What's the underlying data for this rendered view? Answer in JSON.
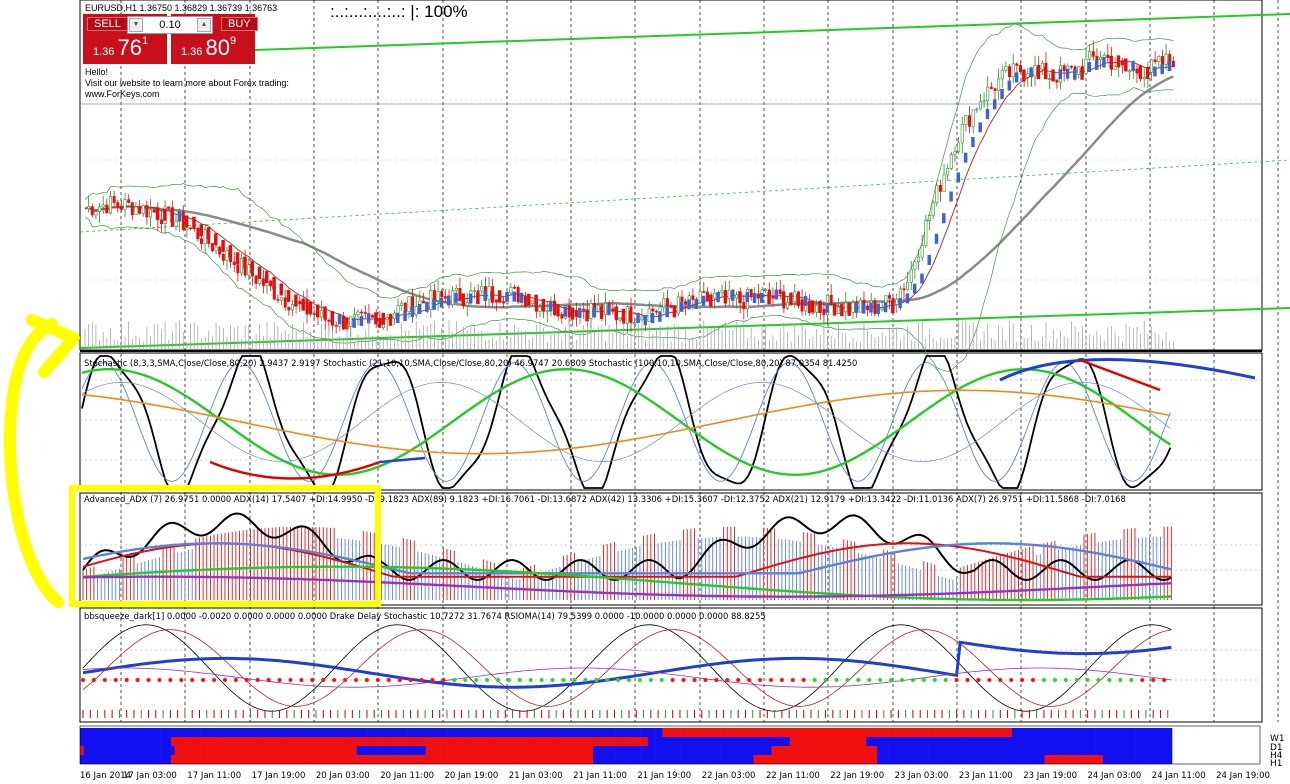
{
  "chart": {
    "symbol_line": "EURUSD,H1  1.36750 1.36829 1.36739 1.36763",
    "zoom_display": ":..:...:....:..:  |:  100%"
  },
  "trade_panel": {
    "sell_label": "SELL",
    "buy_label": "BUY",
    "lot_value": "0.10",
    "sell_prefix": "1.36",
    "sell_big": "76",
    "sell_sup": "1",
    "buy_prefix": "1.36",
    "buy_big": "80",
    "buy_sup": "9"
  },
  "message": {
    "line1": "Hello!",
    "line2": "Visit our website to learn more about Forex trading:",
    "line3": "www.ForKeys.com"
  },
  "indicators": {
    "stochastic": "Stochastic (8,3,3,SMA,Close/Close,80,20) 2.9437 2.9197  Stochastic (21,10,10,SMA,Close/Close,80,20) 46.9747 20.6809  Stochastic (100,10,10,SMA,Close/Close,80,20) 87.0354 81.4250",
    "adx": "Advanced_ADX (7) 26.9751 0.0000  ADX(14) 17.5407 +DI:14.9950 -DI:9.1823  ADX(89) 9.1823 +DI:16.7061 -DI:13.6872  ADX(42) 13.3306 +DI:15.3607 -DI:12.3752  ADX(21) 12.9179 +DI:13.3422 -DI:11.0136  ADX(7) 26.9751 +DI:11.5868 -DI:7.0168",
    "squeeze": "bbsqueeze_dark[1] 0.0000 -0.0020 0.0000 0.0000 0.0000  Drake Delay Stochastic 10.7272 31.7674  RSIOMA(14) 79.5399 0.0000 -10.0000 0.0000 0.0000 88.8255"
  },
  "timeframe_labels": [
    "W1",
    "D1",
    "H4",
    "H1"
  ],
  "colors": {
    "bull": "#2a8f2a",
    "bear": "#e01010",
    "green_line": "#22cc22",
    "blue_line": "#1e3fd0",
    "red_line": "#e00000",
    "orange_line": "#f08a10",
    "highlight": "#ffff00"
  },
  "chart_data": {
    "type": "candlestick",
    "x_ticks": [
      "16 Jan 2014",
      "17 Jan 03:00",
      "17 Jan 11:00",
      "17 Jan 19:00",
      "20 Jan 03:00",
      "20 Jan 11:00",
      "20 Jan 19:00",
      "21 Jan 03:00",
      "21 Jan 11:00",
      "21 Jan 19:00",
      "22 Jan 03:00",
      "22 Jan 11:00",
      "22 Jan 19:00",
      "23 Jan 03:00",
      "23 Jan 11:00",
      "23 Jan 19:00",
      "24 Jan 03:00",
      "24 Jan 11:00",
      "24 Jan 19:00"
    ],
    "last_price": [
      1.3675,
      1.36829,
      1.36739,
      1.36763
    ],
    "close_path": [
      1.361,
      1.3612,
      1.3611,
      1.3608,
      1.3604,
      1.3596,
      1.3588,
      1.358,
      1.3572,
      1.3566,
      1.3561,
      1.356,
      1.3561,
      1.3566,
      1.3569,
      1.3571,
      1.3572,
      1.3573,
      1.3572,
      1.3567,
      1.3566,
      1.3566,
      1.3563,
      1.3564,
      1.3567,
      1.3568,
      1.3571,
      1.3569,
      1.3572,
      1.357,
      1.3567,
      1.3568,
      1.3566,
      1.3567,
      1.3578,
      1.361,
      1.364,
      1.3658,
      1.3668,
      1.3672,
      1.3668,
      1.3671,
      1.3678,
      1.367,
      1.3671,
      1.3676
    ],
    "panels": [
      "price",
      "stochastic",
      "advanced_adx",
      "bbsqueeze_rsioma",
      "timeframe_heatmap"
    ]
  }
}
